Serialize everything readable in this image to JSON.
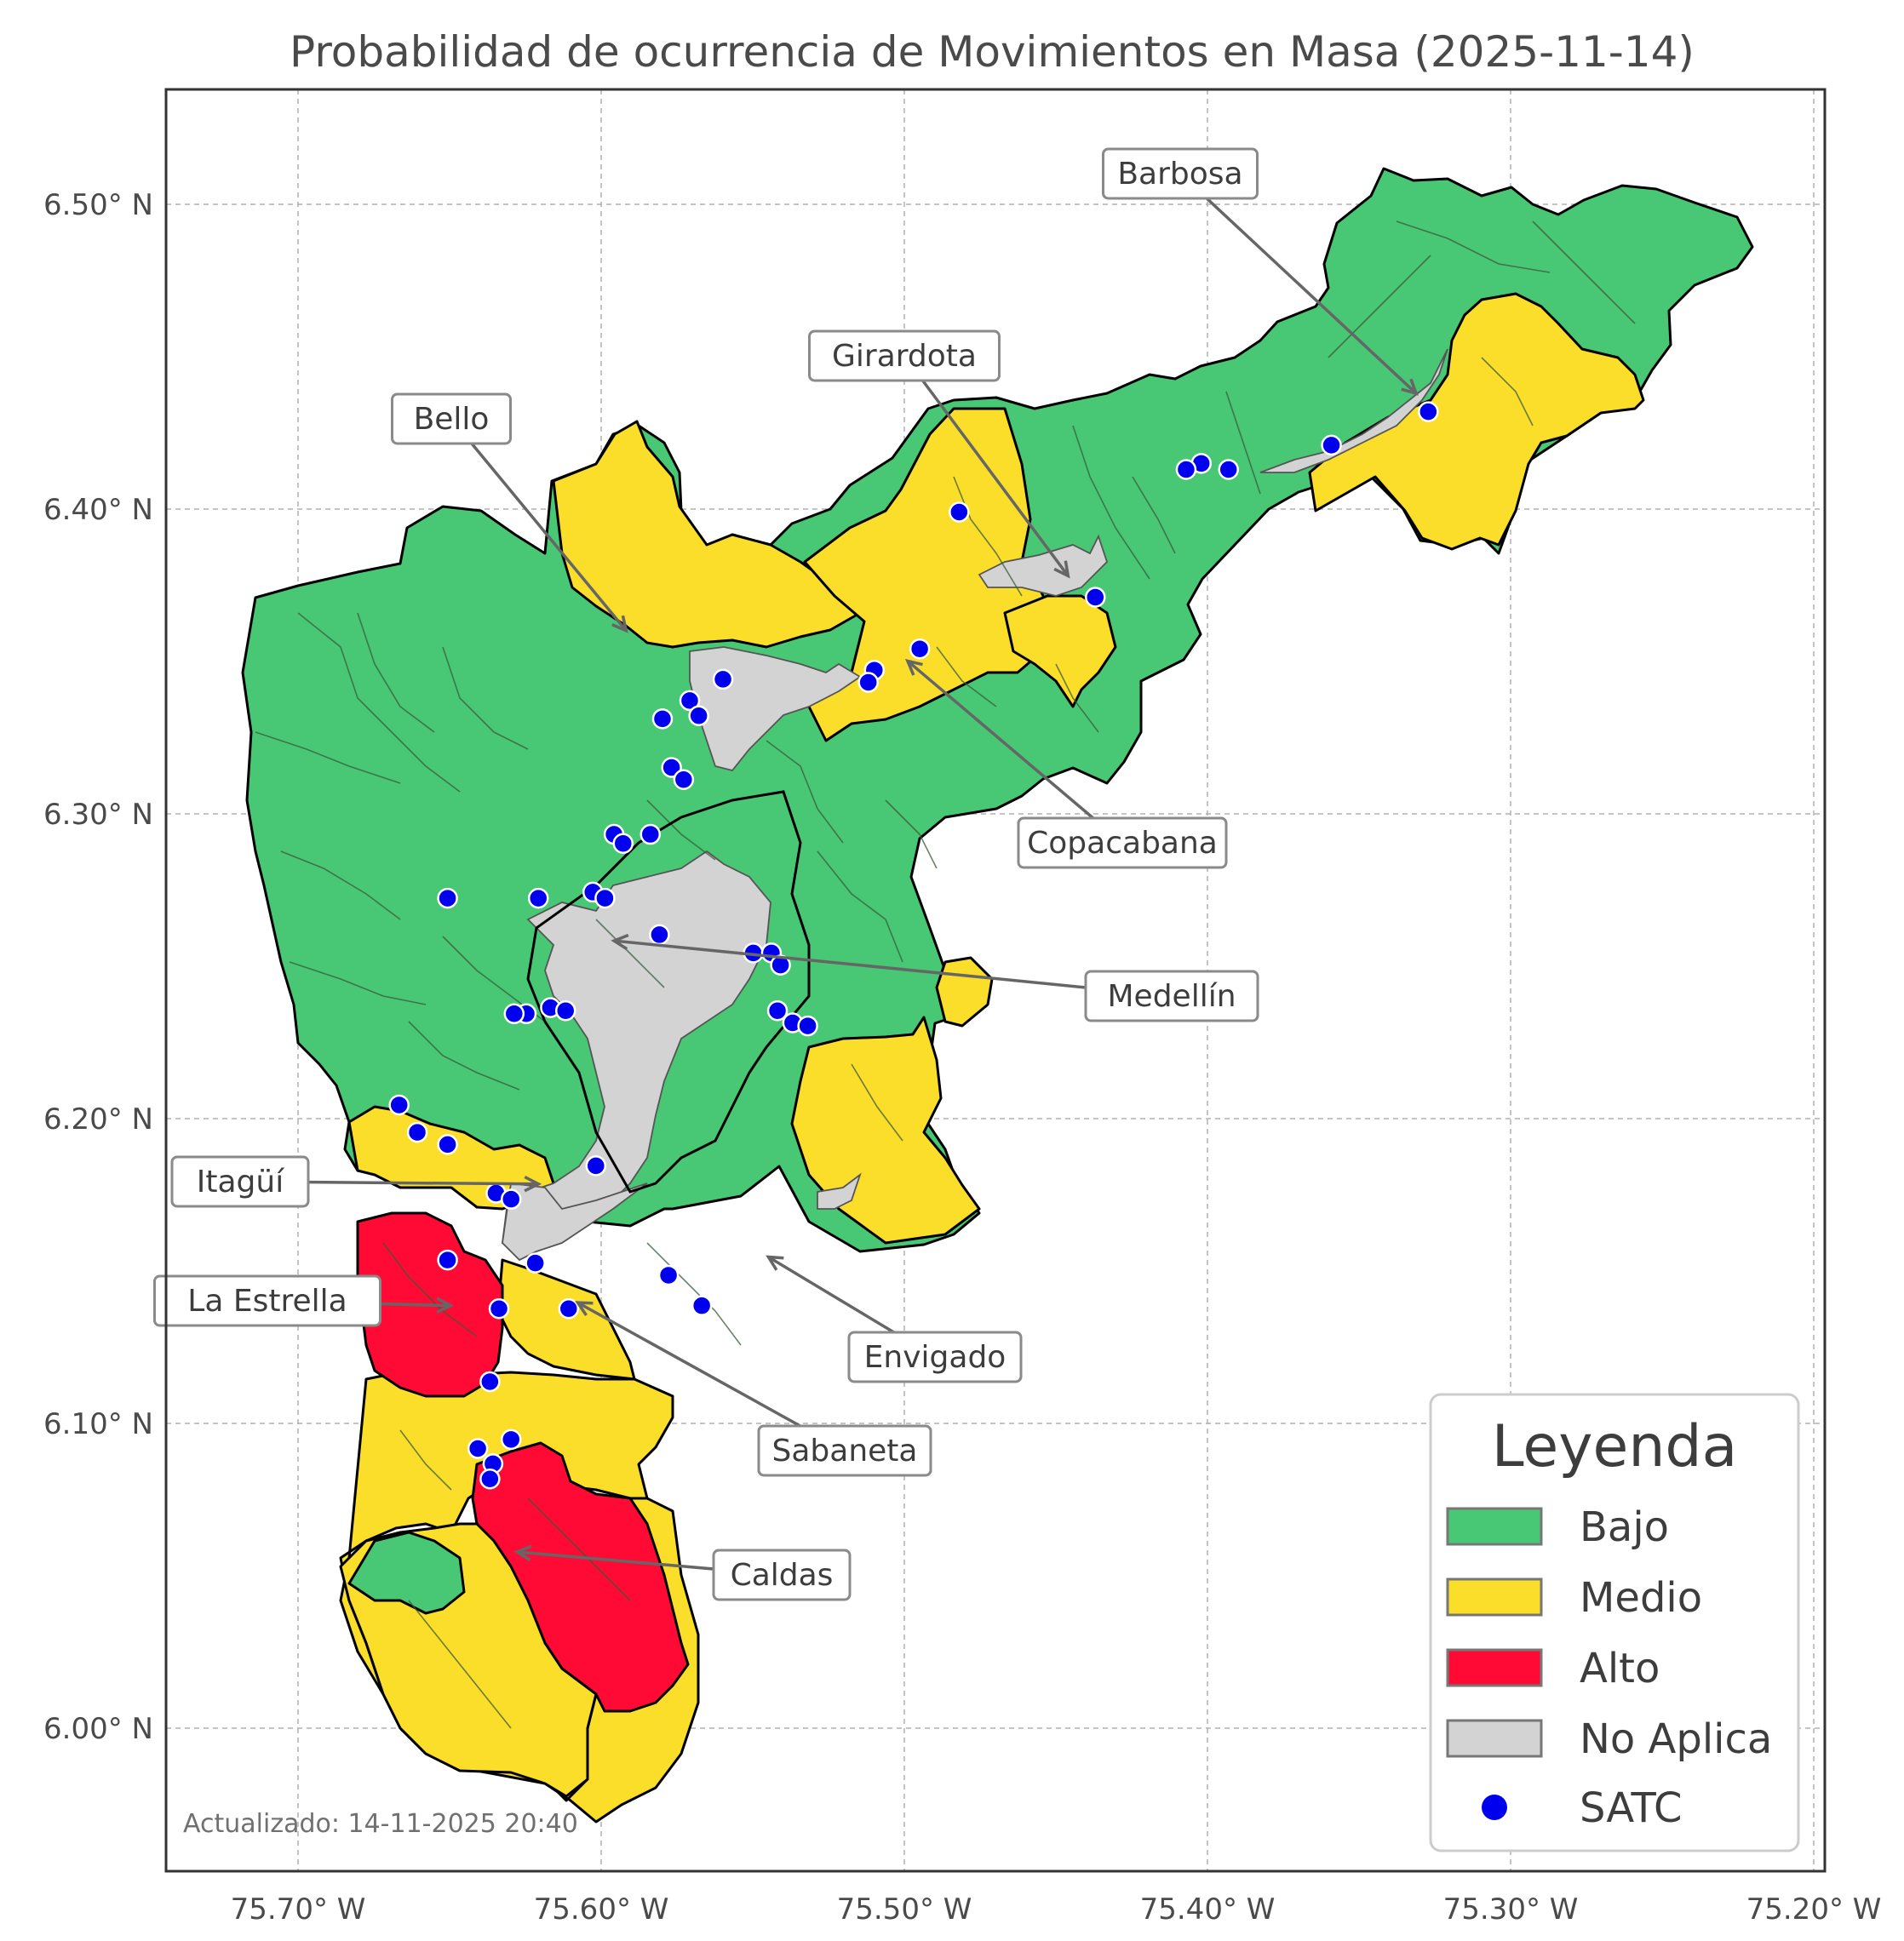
{
  "title": "Probabilidad de ocurrencia de Movimientos en Masa (2025-11-14)",
  "x_ticks": [
    "75.70° W",
    "75.60° W",
    "75.50° W",
    "75.40° W",
    "75.30° W",
    "75.20° W"
  ],
  "y_ticks": [
    "6.50° N",
    "6.40° N",
    "6.30° N",
    "6.20° N",
    "6.10° N",
    "6.00° N"
  ],
  "map_extent": {
    "lon_min": -75.744,
    "lon_max": -75.196,
    "lat_min": 5.952,
    "lat_max": 6.538
  },
  "colors": {
    "bajo": "#48c774",
    "medio": "#fbde29",
    "alto": "#ff0a34",
    "no_aplica": "#d3d3d3",
    "satc": "#0000ee"
  },
  "municipalities": [
    {
      "name": "Barbosa",
      "lon": -75.331,
      "lat": 6.438
    },
    {
      "name": "Girardota",
      "lon": -75.446,
      "lat": 6.378
    },
    {
      "name": "Bello",
      "lon": -75.592,
      "lat": 6.36
    },
    {
      "name": "Copacabana",
      "lon": -75.499,
      "lat": 6.35
    },
    {
      "name": "Medellín",
      "lon": -75.596,
      "lat": 6.258
    },
    {
      "name": "Itagüí",
      "lon": -75.621,
      "lat": 6.178
    },
    {
      "name": "Envigado",
      "lon": -75.545,
      "lat": 6.154
    },
    {
      "name": "La Estrella",
      "lon": -75.65,
      "lat": 6.138
    },
    {
      "name": "Sabaneta",
      "lon": -75.608,
      "lat": 6.139
    },
    {
      "name": "Caldas",
      "lon": -75.628,
      "lat": 6.057
    }
  ],
  "satc_stations": [
    [
      -75.327,
      6.432
    ],
    [
      -75.359,
      6.421
    ],
    [
      -75.393,
      6.413
    ],
    [
      -75.402,
      6.415
    ],
    [
      -75.407,
      6.413
    ],
    [
      -75.482,
      6.399
    ],
    [
      -75.437,
      6.371
    ],
    [
      -75.495,
      6.354
    ],
    [
      -75.51,
      6.347
    ],
    [
      -75.512,
      6.343
    ],
    [
      -75.56,
      6.344
    ],
    [
      -75.571,
      6.337
    ],
    [
      -75.568,
      6.332
    ],
    [
      -75.58,
      6.331
    ],
    [
      -75.577,
      6.315
    ],
    [
      -75.573,
      6.311
    ],
    [
      -75.596,
      6.293
    ],
    [
      -75.593,
      6.29
    ],
    [
      -75.584,
      6.293
    ],
    [
      -75.651,
      6.272
    ],
    [
      -75.621,
      6.272
    ],
    [
      -75.603,
      6.274
    ],
    [
      -75.599,
      6.272
    ],
    [
      -75.581,
      6.26
    ],
    [
      -75.55,
      6.254
    ],
    [
      -75.544,
      6.254
    ],
    [
      -75.541,
      6.25
    ],
    [
      -75.542,
      6.235
    ],
    [
      -75.537,
      6.231
    ],
    [
      -75.532,
      6.23
    ],
    [
      -75.617,
      6.236
    ],
    [
      -75.612,
      6.235
    ],
    [
      -75.625,
      6.234
    ],
    [
      -75.629,
      6.234
    ],
    [
      -75.667,
      6.204
    ],
    [
      -75.661,
      6.195
    ],
    [
      -75.651,
      6.191
    ],
    [
      -75.602,
      6.184
    ],
    [
      -75.635,
      6.175
    ],
    [
      -75.63,
      6.173
    ],
    [
      -75.651,
      6.153
    ],
    [
      -75.622,
      6.152
    ],
    [
      -75.578,
      6.148
    ],
    [
      -75.567,
      6.138
    ],
    [
      -75.611,
      6.137
    ],
    [
      -75.634,
      6.137
    ],
    [
      -75.637,
      6.113
    ],
    [
      -75.63,
      6.094
    ],
    [
      -75.641,
      6.091
    ],
    [
      -75.636,
      6.086
    ],
    [
      -75.637,
      6.081
    ]
  ],
  "legend": {
    "title": "Leyenda",
    "items": [
      {
        "label": "Bajo",
        "color": "#48c774",
        "kind": "patch"
      },
      {
        "label": "Medio",
        "color": "#fbde29",
        "kind": "patch"
      },
      {
        "label": "Alto",
        "color": "#ff0a34",
        "kind": "patch"
      },
      {
        "label": "No Aplica",
        "color": "#d3d3d3",
        "kind": "patch"
      },
      {
        "label": "SATC",
        "color": "#0000ee",
        "kind": "marker"
      }
    ]
  },
  "footnote": "Actualizado: 14-11-2025 20:40"
}
